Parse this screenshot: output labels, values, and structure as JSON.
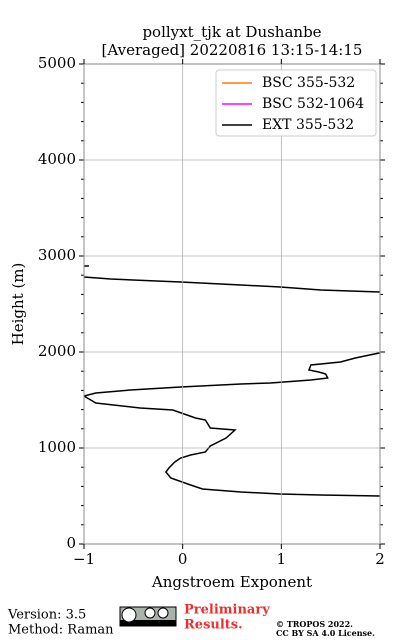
{
  "chart_data": {
    "type": "line",
    "title": "pollyxt_tjk at Dushanbe",
    "subtitle": "[Averaged] 20220816 13:15-14:15",
    "x_label": "Angstroem Exponent",
    "y_label": "Height (m)",
    "xlim": [
      -1,
      2
    ],
    "xticks": [
      {
        "value": -1,
        "label": "−1"
      },
      0,
      1,
      2
    ],
    "ylim": [
      0,
      5000
    ],
    "yticks": [
      0,
      1000,
      2000,
      3000,
      4000,
      5000
    ],
    "yminorticks": [
      200,
      400,
      600,
      800,
      1200,
      1400,
      1600,
      1800,
      2200,
      2400,
      2600,
      2800,
      3200,
      3400,
      3600,
      3800,
      4200,
      4400,
      4600,
      4800
    ],
    "grid": true,
    "legend": "upper right",
    "y": [
      2896,
      2896,
      null,
      2625,
      2646,
      2677,
      2698,
      2729,
      2760,
      2781,
      null,
      2000,
      1938,
      1896,
      1865,
      1813,
      1792,
      1771,
      1729,
      1708,
      1677,
      1667,
      1635,
      1604,
      1573,
      1542,
      1469,
      1417,
      1396,
      1313,
      1292,
      1208,
      1188,
      1104,
      1021,
      958,
      927,
      896,
      854,
      792,
      750,
      688,
      615,
      573,
      542,
      521,
      510,
      500
    ],
    "series": [
      {
        "name": "BSC 355-532",
        "color": "#ff7f0e",
        "values": [
          null,
          null,
          null,
          null,
          null,
          null,
          null,
          null,
          null,
          null,
          null,
          null,
          null,
          null,
          null,
          null,
          null,
          null,
          null,
          null,
          null,
          null,
          null,
          null,
          null,
          null,
          null,
          null,
          null,
          null,
          null,
          null,
          null,
          null,
          null,
          null,
          null,
          null,
          null,
          null,
          null,
          null,
          null,
          null,
          null,
          null,
          null,
          null
        ]
      },
      {
        "name": "BSC 532-1064",
        "color": "#ff00ff",
        "values": [
          null,
          null,
          null,
          null,
          null,
          null,
          null,
          null,
          null,
          null,
          null,
          null,
          null,
          null,
          null,
          null,
          null,
          null,
          null,
          null,
          null,
          null,
          null,
          null,
          null,
          null,
          null,
          null,
          null,
          null,
          null,
          null,
          null,
          null,
          null,
          null,
          null,
          null,
          null,
          null,
          null,
          null,
          null,
          null,
          null,
          null,
          null,
          null
        ]
      },
      {
        "name": "EXT 355-532",
        "color": "#000000",
        "values": [
          -1.0,
          -0.95,
          null,
          2.0,
          1.4,
          0.99,
          0.59,
          -0.02,
          -0.73,
          -1.0,
          null,
          2.04,
          1.75,
          1.6,
          1.3,
          1.28,
          1.38,
          1.45,
          1.47,
          1.3,
          0.89,
          0.59,
          -0.02,
          -0.53,
          -0.88,
          -1.0,
          -0.88,
          -0.43,
          -0.1,
          0.13,
          0.23,
          0.28,
          0.53,
          0.44,
          0.28,
          0.23,
          0.08,
          -0.02,
          -0.08,
          -0.14,
          -0.17,
          -0.12,
          0.08,
          0.2,
          0.59,
          0.99,
          1.4,
          2.0
        ]
      }
    ]
  },
  "footer": {
    "version": "Version: 3.5",
    "method": "Method: Raman",
    "notice": [
      "Preliminary",
      "Results."
    ],
    "copyright": [
      "© TROPOS 2022.",
      "CC BY SA 4.0 License."
    ]
  }
}
